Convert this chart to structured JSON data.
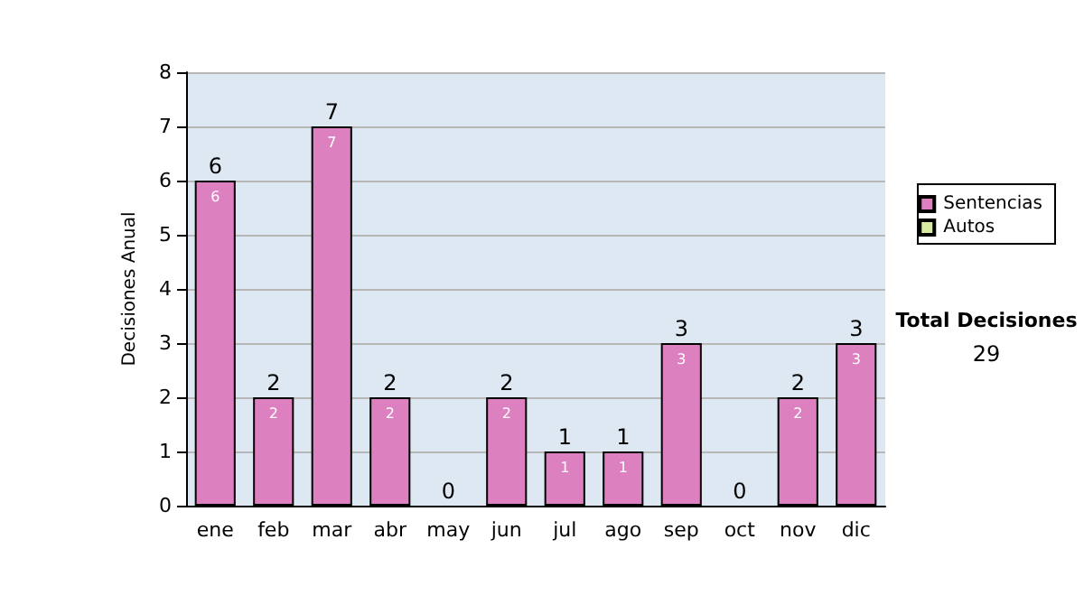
{
  "chart_data": {
    "type": "bar",
    "stacked": true,
    "ylabel": "Decisiones Anual",
    "categories": [
      "ene",
      "feb",
      "mar",
      "abr",
      "may",
      "jun",
      "jul",
      "ago",
      "sep",
      "oct",
      "nov",
      "dic"
    ],
    "series": [
      {
        "name": "Sentencias",
        "color": "#dd80c0",
        "values": [
          6,
          2,
          7,
          2,
          0,
          2,
          1,
          1,
          3,
          0,
          2,
          3
        ],
        "value_labels": [
          "6",
          "2",
          "7",
          "2",
          null,
          "2",
          "1",
          "1",
          "3",
          null,
          "2",
          "3"
        ]
      },
      {
        "name": "Autos",
        "color": "#d8eca0",
        "values": [
          0,
          0,
          0,
          0,
          0,
          0,
          0,
          0,
          0,
          0,
          0,
          0
        ]
      }
    ],
    "totals": [
      "6",
      "2",
      "7",
      "2",
      "0",
      "2",
      "1",
      "1",
      "3",
      "0",
      "2",
      "3"
    ],
    "ylim": [
      0,
      8
    ],
    "yticks": [
      0,
      1,
      2,
      3,
      4,
      5,
      6,
      7,
      8
    ],
    "grid": "y",
    "legend": "right",
    "annotations": [
      "Total Decisiones",
      "29"
    ]
  }
}
